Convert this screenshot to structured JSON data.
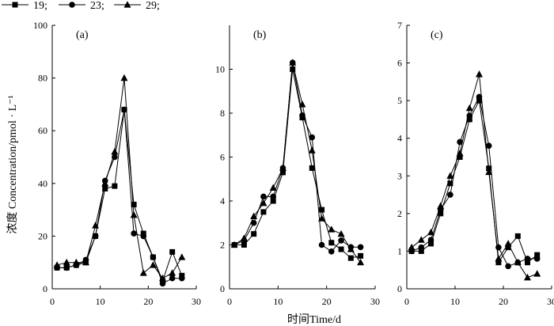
{
  "legend": {
    "entries": [
      {
        "label": "19;",
        "marker": "square"
      },
      {
        "label": "23;",
        "marker": "circle"
      },
      {
        "label": "29;",
        "marker": "triangle"
      }
    ]
  },
  "axis_titles": {
    "y": "浓度 Concentration/pmol · L⁻¹",
    "x": "时间Time/d"
  },
  "chart_data": [
    {
      "type": "line",
      "panel_label": "(a)",
      "xlim": [
        0,
        30
      ],
      "ylim": [
        0,
        100
      ],
      "xticks": [
        0,
        10,
        20,
        30
      ],
      "yticks": [
        0,
        20,
        40,
        60,
        80,
        100
      ],
      "x": [
        1,
        3,
        5,
        7,
        9,
        11,
        13,
        15,
        17,
        19,
        21,
        23,
        25,
        27
      ],
      "series": [
        {
          "name": "19;",
          "marker": "square",
          "values": [
            8,
            8,
            9,
            10,
            20,
            38,
            39,
            68,
            32,
            21,
            12,
            3,
            14,
            5
          ]
        },
        {
          "name": "23;",
          "marker": "circle",
          "values": [
            8,
            8,
            9,
            11,
            20,
            41,
            50,
            68,
            21,
            20,
            12,
            2,
            4,
            4
          ]
        },
        {
          "name": "29;",
          "marker": "triangle",
          "values": [
            9,
            10,
            10,
            10,
            24,
            40,
            52,
            80,
            28,
            6,
            9,
            4,
            6,
            12
          ]
        }
      ]
    },
    {
      "type": "line",
      "panel_label": "(b)",
      "xlim": [
        0,
        30
      ],
      "ylim": [
        0,
        12
      ],
      "xticks": [
        0,
        10,
        20,
        30
      ],
      "yticks": [
        0,
        2,
        4,
        6,
        8,
        10
      ],
      "x": [
        1,
        3,
        5,
        7,
        9,
        11,
        13,
        15,
        17,
        19,
        21,
        23,
        25,
        27
      ],
      "series": [
        {
          "name": "19;",
          "marker": "square",
          "values": [
            2.0,
            2.0,
            2.5,
            3.5,
            4.0,
            5.3,
            10.0,
            7.8,
            5.5,
            3.6,
            2.1,
            1.8,
            1.4,
            1.5
          ]
        },
        {
          "name": "23;",
          "marker": "circle",
          "values": [
            2.0,
            2.2,
            3.0,
            4.2,
            4.2,
            5.5,
            10.3,
            7.9,
            6.9,
            2.0,
            1.7,
            2.2,
            1.9,
            1.9
          ]
        },
        {
          "name": "29;",
          "marker": "triangle",
          "values": [
            2.0,
            2.3,
            3.3,
            3.9,
            4.6,
            5.5,
            10.3,
            8.4,
            6.3,
            3.2,
            2.7,
            2.5,
            1.8,
            1.2
          ]
        }
      ]
    },
    {
      "type": "line",
      "panel_label": "(c)",
      "xlim": [
        0,
        30
      ],
      "ylim": [
        0,
        7
      ],
      "xticks": [
        0,
        10,
        20,
        30
      ],
      "yticks": [
        0,
        1,
        2,
        3,
        4,
        5,
        6,
        7
      ],
      "x": [
        1,
        3,
        5,
        7,
        9,
        11,
        13,
        15,
        17,
        19,
        21,
        23,
        25,
        27
      ],
      "series": [
        {
          "name": "19;",
          "marker": "square",
          "values": [
            1.0,
            1.0,
            1.2,
            2.0,
            2.8,
            3.5,
            4.5,
            5.0,
            3.2,
            0.7,
            1.1,
            1.4,
            0.7,
            0.9
          ]
        },
        {
          "name": "23;",
          "marker": "circle",
          "values": [
            1.0,
            1.1,
            1.3,
            2.1,
            2.5,
            3.9,
            4.6,
            5.1,
            3.8,
            1.1,
            0.6,
            0.7,
            0.8,
            0.8
          ]
        },
        {
          "name": "29;",
          "marker": "triangle",
          "values": [
            1.1,
            1.3,
            1.5,
            2.2,
            3.0,
            3.6,
            4.8,
            5.7,
            3.1,
            0.8,
            1.2,
            0.7,
            0.3,
            0.4
          ]
        }
      ]
    }
  ]
}
